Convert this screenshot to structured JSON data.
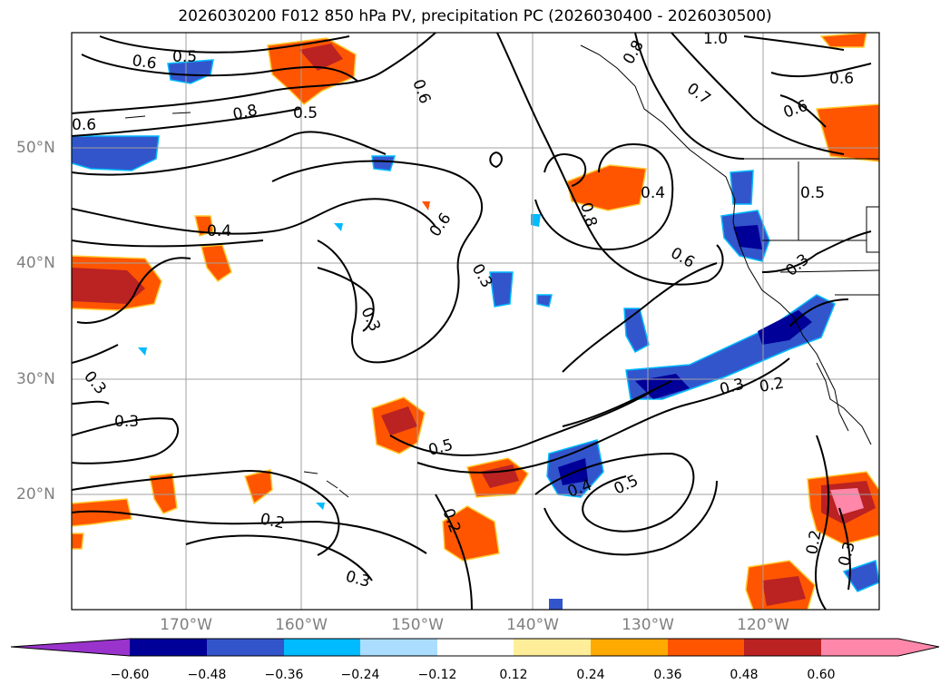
{
  "title": "2026030200 F012 850 hPa PV, precipitation PC (2026030400 - 2026030500)",
  "map": {
    "lat_labels": [
      "50°N",
      "40°N",
      "30°N",
      "20°N"
    ],
    "lon_labels": [
      "170°W",
      "160°W",
      "150°W",
      "140°W",
      "130°W",
      "120°W"
    ],
    "contour_labels": [
      "0.6",
      "0.5",
      "0.8",
      "0.5",
      "0.6",
      "0.6",
      "0.4",
      "0.6",
      "0.3",
      "0.3",
      "0.3",
      "0.3",
      "0.2",
      "0.2",
      "0.3",
      "0.8",
      "0.4",
      "0.6",
      "0.5",
      "0.4",
      "0.5",
      "0.3",
      "0.2",
      "0.2",
      "0.3",
      "0.3",
      "0.5",
      "0.6",
      "0.6",
      "0.7",
      "0.8",
      "1.0"
    ],
    "colors": {
      "pv_contour": "#000000",
      "coastline": "#000000",
      "grid": "#a0a0a0"
    }
  },
  "colorbar": {
    "ticks": [
      "−0.60",
      "−0.48",
      "−0.36",
      "−0.24",
      "−0.12",
      "0.12",
      "0.24",
      "0.36",
      "0.48",
      "0.60"
    ],
    "colors": [
      "#9933cc",
      "#000099",
      "#3355cc",
      "#00bbff",
      "#aaddff",
      "#ffffff",
      "#ffee99",
      "#ffaa00",
      "#ff5500",
      "#bb2222",
      "#ff88aa"
    ]
  }
}
